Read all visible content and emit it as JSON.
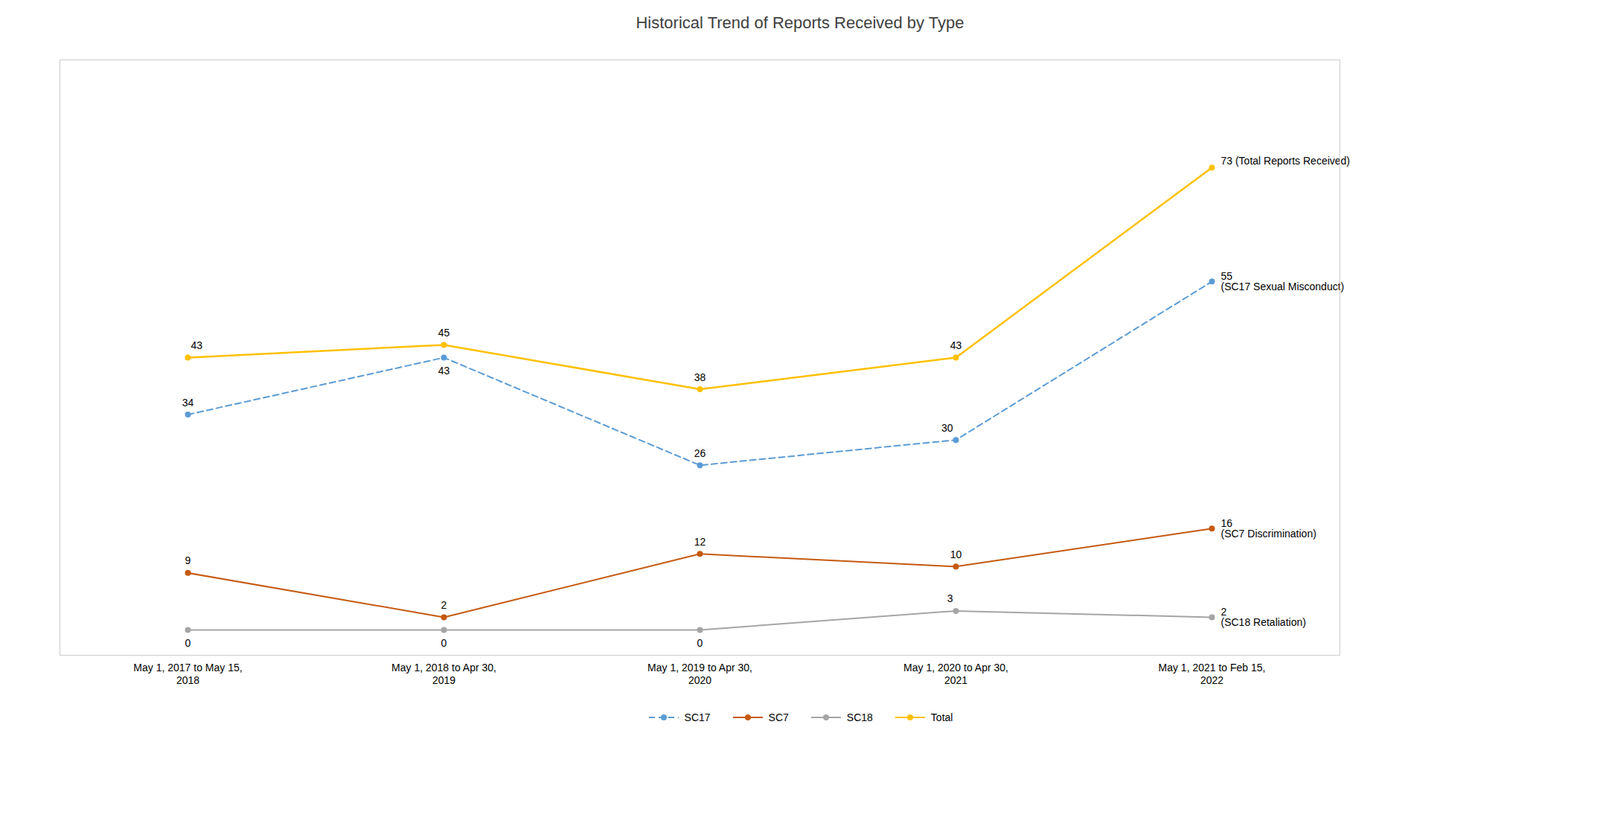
{
  "chart_data": {
    "type": "line",
    "title": "Historical Trend of Reports Received by Type",
    "categories": [
      "May 1, 2017 to May 15,\n2018",
      "May 1, 2018 to Apr 30,\n2019",
      "May 1, 2019 to Apr 30,\n2020",
      "May 1, 2020 to Apr 30,\n2021",
      "May 1, 2021 to Feb 15,\n2022"
    ],
    "series": [
      {
        "name": "SC17",
        "color": "#5B9BD5",
        "line_style": "dashed",
        "marker": "circle",
        "values": [
          34,
          43,
          26,
          30,
          55
        ],
        "value_labels": [
          "34",
          "43",
          "26",
          "30",
          "55\n(SC17 Sexual Misconduct)"
        ]
      },
      {
        "name": "SC7",
        "color": "#C55A11",
        "line_style": "solid",
        "marker": "circle",
        "values": [
          9,
          2,
          12,
          10,
          16
        ],
        "value_labels": [
          "9",
          "2",
          "12",
          "10",
          "16\n(SC7 Discrimination)"
        ]
      },
      {
        "name": "SC18",
        "color": "#A5A5A5",
        "line_style": "solid",
        "marker": "circle",
        "values": [
          0,
          0,
          0,
          3,
          2
        ],
        "value_labels": [
          "0",
          "0",
          "0",
          "3",
          "2\n(SC18 Retaliation)"
        ]
      },
      {
        "name": "Total",
        "color": "#FFC000",
        "line_style": "solid",
        "marker": "circle",
        "values": [
          43,
          45,
          38,
          43,
          73
        ],
        "value_labels": [
          "43",
          "45",
          "38",
          "43",
          "73 (Total Reports Received)"
        ]
      }
    ],
    "ylim": [
      -4,
      90
    ],
    "grid": false,
    "legend": "bottom",
    "data_labels": true,
    "tick_labels": "x"
  }
}
